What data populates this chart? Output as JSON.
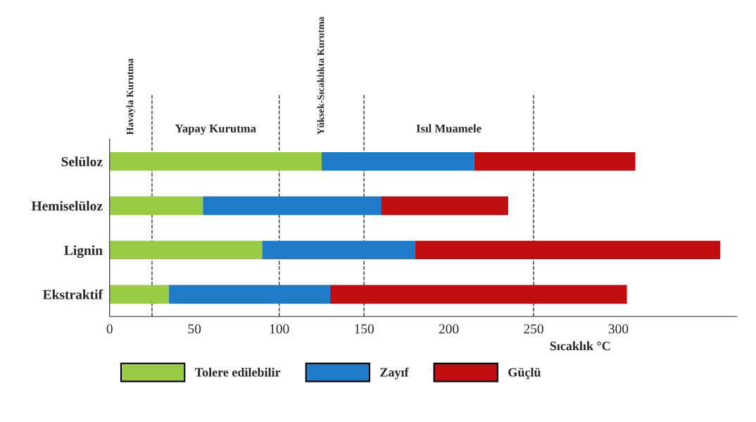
{
  "chart_data": {
    "type": "bar",
    "orientation": "horizontal",
    "stacked": true,
    "categories": [
      "Selüloz",
      "Hemiselüloz",
      "Lignin",
      "Ekstraktif"
    ],
    "series": [
      {
        "name": "Tolere edilebilir",
        "color": "#9acd45",
        "values": [
          125,
          55,
          90,
          35
        ]
      },
      {
        "name": "Zayıf",
        "color": "#1f7ac8",
        "values": [
          90,
          105,
          90,
          95
        ]
      },
      {
        "name": "Güçlü",
        "color": "#c00d10",
        "values": [
          95,
          75,
          180,
          175
        ]
      }
    ],
    "xlabel": "Sıcaklık °C",
    "xlim": [
      0,
      370
    ],
    "xticks": [
      0,
      50,
      100,
      150,
      200,
      250,
      300
    ],
    "ref_lines": [
      {
        "axis": "x",
        "value": 25,
        "line_style": "dashed",
        "color": "#333333"
      },
      {
        "axis": "x",
        "value": 100,
        "line_style": "dashed",
        "color": "#333333"
      },
      {
        "axis": "x",
        "value": 150,
        "line_style": "dashed",
        "color": "#333333"
      },
      {
        "axis": "x",
        "value": 250,
        "line_style": "dashed",
        "color": "#333333"
      }
    ],
    "annotations": [
      "Havayla Kurutma",
      "Yapay Kurutma",
      "Yüksek-Sıcaklıkta Kurutma",
      "Isıl Muamele"
    ],
    "legend": "bottom",
    "grid": false
  }
}
